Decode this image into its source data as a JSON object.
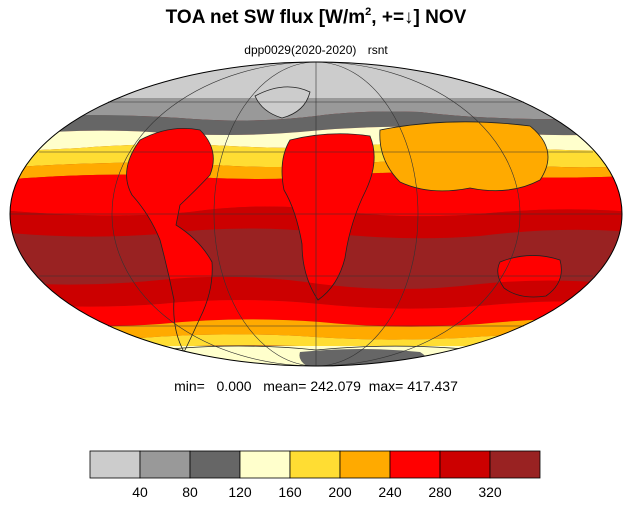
{
  "header": {
    "title_prefix": "TOA net SW flux [W/m",
    "title_exp": "2",
    "title_suffix": ", +=↓]  NOV",
    "run": "dpp0029(2020-2020)",
    "variable": "rsnt"
  },
  "stats": {
    "min_label": "min=",
    "min": "0.000",
    "mean_label": "mean=",
    "mean": "242.079",
    "max_label": "max=",
    "max": "417.437"
  },
  "colorbar": {
    "levels": [
      "40",
      "80",
      "120",
      "160",
      "200",
      "240",
      "280",
      "320"
    ],
    "colors": [
      "#cccccc",
      "#999999",
      "#666666",
      "#ffffcc",
      "#ffdd33",
      "#ffaa00",
      "#ff0000",
      "#cc0000",
      "#992222"
    ]
  },
  "map": {
    "projection": "mollweide",
    "ocean_color": "#992222",
    "coastline_color": "#222222",
    "grid_color": "#333333"
  }
}
